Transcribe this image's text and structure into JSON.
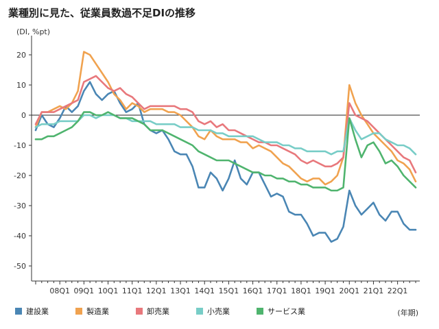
{
  "chart_data": {
    "type": "line",
    "title": "業種別に見た、従業員数過不足DIの推移",
    "ylabel": "(DI, %pt)",
    "xlabel": "(年期)",
    "ylim": [
      -55,
      25
    ],
    "yticks": [
      20,
      10,
      0,
      -10,
      -20,
      -30,
      -40,
      -50
    ],
    "x": [
      "07Q1",
      "07Q2",
      "07Q3",
      "07Q4",
      "08Q1",
      "08Q2",
      "08Q3",
      "08Q4",
      "09Q1",
      "09Q2",
      "09Q3",
      "09Q4",
      "10Q1",
      "10Q2",
      "10Q3",
      "10Q4",
      "11Q1",
      "11Q2",
      "11Q3",
      "11Q4",
      "12Q1",
      "12Q2",
      "12Q3",
      "12Q4",
      "13Q1",
      "13Q2",
      "13Q3",
      "13Q4",
      "14Q1",
      "14Q2",
      "14Q3",
      "14Q4",
      "15Q1",
      "15Q2",
      "15Q3",
      "15Q4",
      "16Q1",
      "16Q2",
      "16Q3",
      "16Q4",
      "17Q1",
      "17Q2",
      "17Q3",
      "17Q4",
      "18Q1",
      "18Q2",
      "18Q3",
      "18Q4",
      "19Q1",
      "19Q2",
      "19Q3",
      "19Q4",
      "20Q1",
      "20Q2",
      "20Q3",
      "20Q4",
      "21Q1",
      "21Q2",
      "21Q3",
      "21Q4",
      "22Q1",
      "22Q2",
      "22Q3",
      "22Q4"
    ],
    "tick_labels": [
      "08Q1",
      "09Q1",
      "10Q1",
      "11Q1",
      "12Q1",
      "13Q1",
      "14Q1",
      "15Q1",
      "16Q1",
      "17Q1",
      "18Q1",
      "19Q1",
      "20Q1",
      "21Q1",
      "22Q1"
    ],
    "series": [
      {
        "name": "建設業",
        "color": "#4a86b4",
        "values": [
          -5,
          0,
          -3,
          -4,
          -1,
          3,
          1,
          3,
          8,
          11,
          7,
          5,
          7,
          8,
          4,
          1,
          2,
          4,
          -3,
          -5,
          -6,
          -5,
          -8,
          -12,
          -13,
          -13,
          -17,
          -24,
          -24,
          -19,
          -21,
          -25,
          -21,
          -15,
          -21,
          -23,
          -19,
          -19,
          -23,
          -27,
          -26,
          -27,
          -32,
          -33,
          -33,
          -36,
          -40,
          -39,
          -39,
          -42,
          -41,
          -37,
          -25,
          -30,
          -33,
          -31,
          -29,
          -33,
          -35,
          -32,
          -32,
          -36,
          -38,
          -38
        ]
      },
      {
        "name": "製造業",
        "color": "#f0a24f",
        "values": [
          -4,
          1,
          1,
          2,
          3,
          2,
          4,
          8,
          21,
          20,
          17,
          14,
          11,
          7,
          5,
          2,
          4,
          3,
          1,
          2,
          2,
          2,
          1,
          1,
          0,
          -2,
          -4,
          -7,
          -8,
          -5,
          -7,
          -8,
          -8,
          -8,
          -9,
          -9,
          -11,
          -10,
          -11,
          -12,
          -14,
          -16,
          -17,
          -19,
          -21,
          -22,
          -21,
          -21,
          -23,
          -22,
          -20,
          -14,
          10,
          4,
          0,
          -3,
          -6,
          -8,
          -10,
          -12,
          -15,
          -16,
          -18,
          -22
        ]
      },
      {
        "name": "卸売業",
        "color": "#e8787c",
        "values": [
          -3,
          1,
          1,
          1,
          2,
          3,
          4,
          5,
          11,
          12,
          13,
          11,
          9,
          8,
          9,
          7,
          6,
          4,
          2,
          3,
          3,
          3,
          3,
          3,
          2,
          2,
          1,
          -2,
          -3,
          -2,
          -4,
          -3,
          -5,
          -5,
          -6,
          -7,
          -8,
          -9,
          -9,
          -10,
          -10,
          -11,
          -12,
          -13,
          -15,
          -16,
          -15,
          -16,
          -17,
          -17,
          -16,
          -14,
          4,
          0,
          -1,
          -2,
          -4,
          -6,
          -8,
          -10,
          -12,
          -14,
          -15,
          -19
        ]
      },
      {
        "name": "小売業",
        "color": "#78cdc7",
        "values": [
          -4,
          -3,
          -3,
          -3,
          -2,
          -2,
          -2,
          -2,
          0,
          0,
          -1,
          0,
          0,
          0,
          -1,
          -1,
          -2,
          -2,
          -2,
          -2,
          -3,
          -3,
          -3,
          -3,
          -4,
          -4,
          -4,
          -5,
          -5,
          -5,
          -6,
          -6,
          -7,
          -7,
          -7,
          -7,
          -7,
          -8,
          -9,
          -9,
          -9,
          -10,
          -10,
          -11,
          -11,
          -12,
          -12,
          -12,
          -12,
          -13,
          -12,
          -12,
          -1,
          -5,
          -8,
          -7,
          -6,
          -6,
          -8,
          -9,
          -10,
          -10,
          -11,
          -13
        ]
      },
      {
        "name": "サービス業",
        "color": "#4fb46e",
        "values": [
          -8,
          -8,
          -7,
          -7,
          -6,
          -5,
          -4,
          -2,
          1,
          1,
          0,
          0,
          1,
          0,
          -1,
          -1,
          -1,
          -2,
          -3,
          -5,
          -5,
          -5,
          -6,
          -7,
          -8,
          -9,
          -10,
          -12,
          -13,
          -14,
          -15,
          -15,
          -15,
          -16,
          -17,
          -18,
          -19,
          -19,
          -20,
          -20,
          -21,
          -21,
          -22,
          -22,
          -23,
          -23,
          -24,
          -24,
          -24,
          -25,
          -25,
          -24,
          -1,
          -8,
          -14,
          -10,
          -9,
          -12,
          -16,
          -15,
          -17,
          -20,
          -22,
          -24
        ]
      }
    ]
  }
}
